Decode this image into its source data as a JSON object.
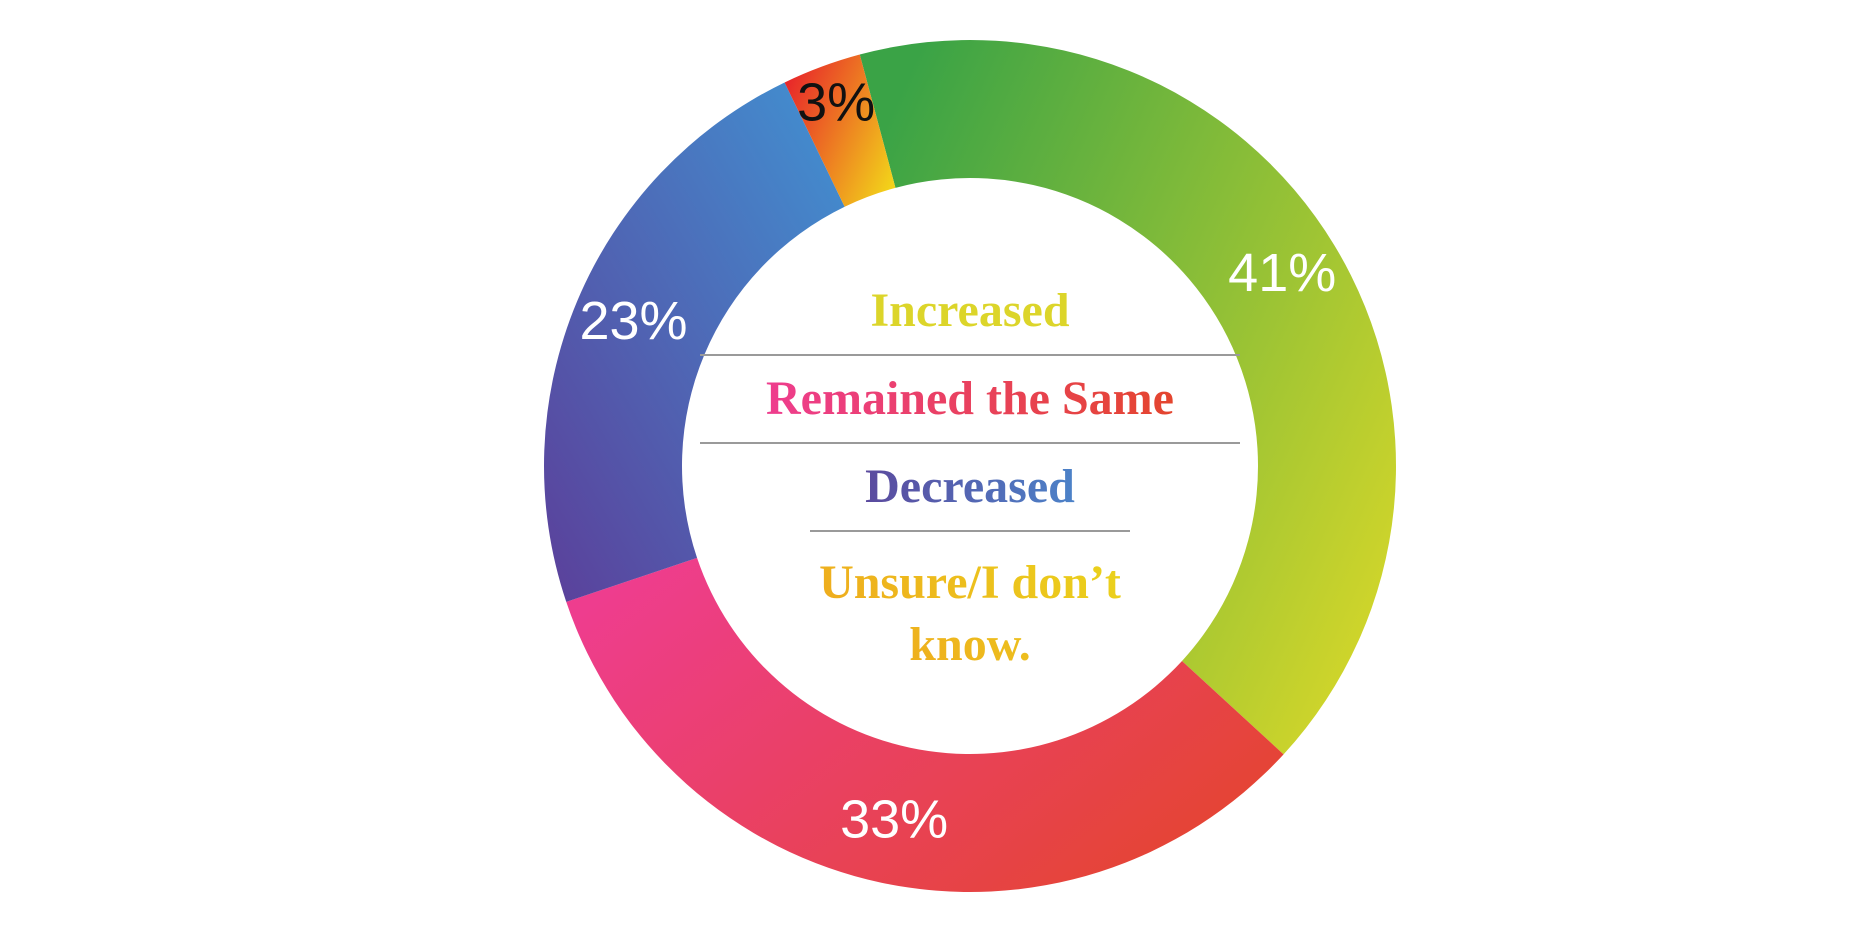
{
  "chart_data": {
    "type": "donut",
    "categories": [
      "Increased",
      "Remained the Same",
      "Decreased",
      "Unsure/I don’t know."
    ],
    "values": [
      41,
      33,
      23,
      3
    ],
    "value_labels": [
      "41%",
      "33%",
      "23%",
      "3%"
    ],
    "colors": [
      [
        "#3aa346",
        "#d3d62a"
      ],
      [
        "#ee3d8e",
        "#e4452e"
      ],
      [
        "#5b3f9a",
        "#4192d2"
      ],
      [
        "#e8262a",
        "#f2d21a"
      ]
    ],
    "legend_colors": [
      [
        "#dcd52a",
        "#dcd52a"
      ],
      [
        "#ee3d8e",
        "#e4452e"
      ],
      [
        "#5b4a9e",
        "#4c82c8"
      ],
      [
        "#f0a21e",
        "#ead51c"
      ]
    ],
    "value_label_colors": [
      "#ffffff",
      "#ffffff",
      "#ffffff",
      "#111111"
    ],
    "legend": "center"
  }
}
